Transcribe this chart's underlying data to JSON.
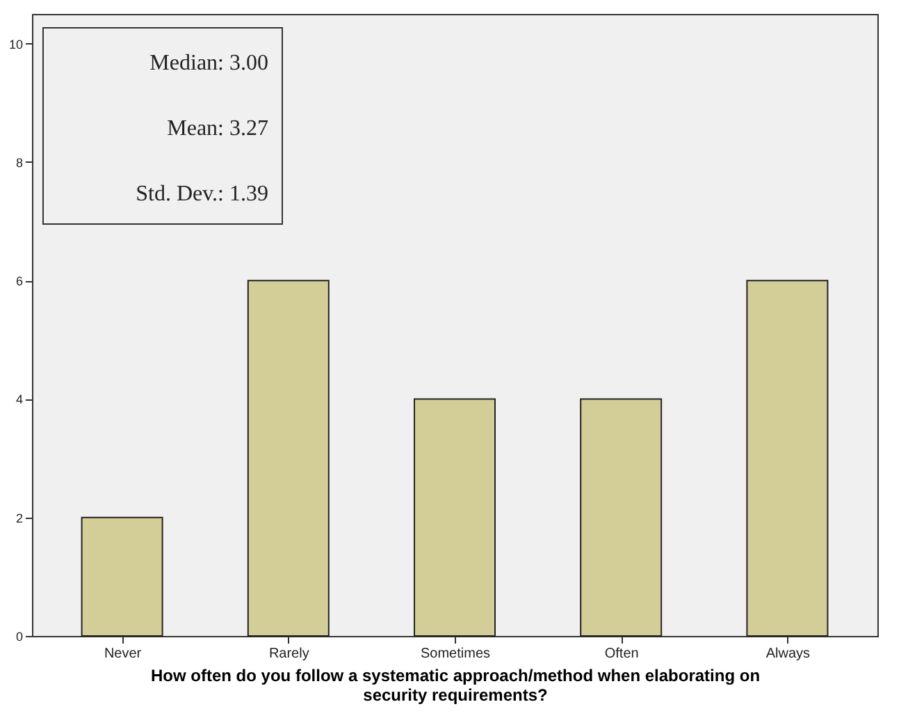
{
  "chart_data": {
    "type": "bar",
    "xlabel": "How often do you follow a systematic approach/method when elaborating on security requirements?",
    "categories": [
      "Never",
      "Rarely",
      "Sometimes",
      "Often",
      "Always"
    ],
    "values": [
      2,
      6,
      4,
      4,
      6
    ],
    "color": "#d3ce97",
    "ylim": [
      0,
      10.5
    ],
    "yticks": [
      0,
      2,
      4,
      6,
      8,
      10
    ],
    "grid": false,
    "annotations": [
      "Median: 3.00",
      "Mean: 3.27",
      "Std. Dev.: 1.39"
    ]
  }
}
